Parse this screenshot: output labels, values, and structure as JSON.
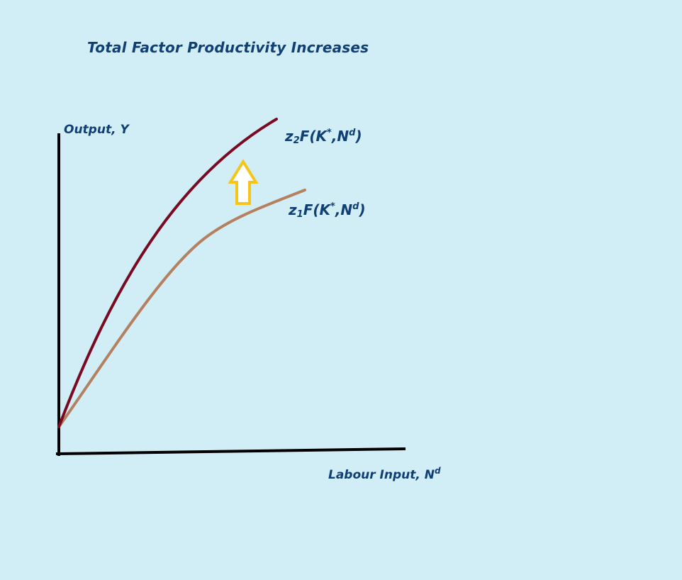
{
  "diagram": {
    "title": "Total Factor Productivity Increases",
    "y_axis_label": "Output, Y",
    "x_axis_label": {
      "text": "Labour Input, N",
      "superscript": "d"
    },
    "curves": [
      {
        "id": "z2",
        "coef": "z",
        "coef_sub": "2",
        "pre": "F(K",
        "star": "*",
        "mid": ",N",
        "sup": "d",
        "post": ")",
        "color": "#7a0a22"
      },
      {
        "id": "z1",
        "coef": "z",
        "coef_sub": "1",
        "pre": "F(K",
        "star": "*",
        "mid": ",N",
        "sup": "d",
        "post": ")",
        "color": "#b5805f"
      }
    ],
    "shift_arrow": {
      "direction": "up",
      "color": "#f5c518",
      "fill": "#ffffff"
    },
    "colors": {
      "background": "#d1eef6",
      "text": "#0f3f73",
      "axes": "#000000"
    }
  }
}
